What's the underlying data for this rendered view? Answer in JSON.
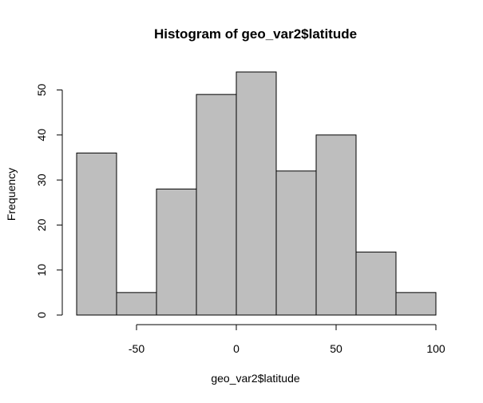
{
  "chart_data": {
    "type": "bar",
    "title": "Histogram of geo_var2$latitude",
    "xlabel": "geo_var2$latitude",
    "ylabel": "Frequency",
    "bins": [
      {
        "start": -80,
        "end": -60,
        "count": 36
      },
      {
        "start": -60,
        "end": -40,
        "count": 5
      },
      {
        "start": -40,
        "end": -20,
        "count": 28
      },
      {
        "start": -20,
        "end": 0,
        "count": 49
      },
      {
        "start": 0,
        "end": 20,
        "count": 54
      },
      {
        "start": 20,
        "end": 40,
        "count": 32
      },
      {
        "start": 40,
        "end": 60,
        "count": 40
      },
      {
        "start": 60,
        "end": 80,
        "count": 14
      },
      {
        "start": 80,
        "end": 100,
        "count": 5
      }
    ],
    "x_ticks": [
      -50,
      0,
      50,
      100
    ],
    "y_ticks": [
      0,
      10,
      20,
      30,
      40,
      50
    ],
    "xlim": [
      -80,
      100
    ],
    "ylim": [
      0,
      54
    ],
    "bar_color": "#bebebe",
    "grid": false
  }
}
